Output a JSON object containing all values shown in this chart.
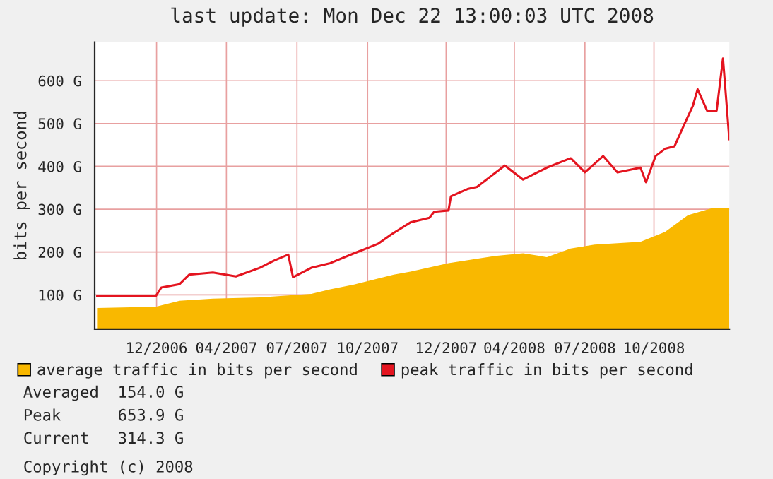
{
  "chart_data": {
    "type": "line",
    "title": "last update: Mon Dec 22 13:00:03 UTC 2008",
    "ylabel": "bits per second",
    "xlim": [
      "2006-10-14",
      "2008-12-22"
    ],
    "ylim": [
      20,
      690
    ],
    "xticks": [
      {
        "value": "2006-12-31",
        "label": "12/2006"
      },
      {
        "value": "2007-03-29",
        "label": "04/2007"
      },
      {
        "value": "2007-06-26",
        "label": "07/2007"
      },
      {
        "value": "2007-09-23",
        "label": "10/2007"
      },
      {
        "value": "2007-12-31",
        "label": "12/2007"
      },
      {
        "value": "2008-03-26",
        "label": "04/2008"
      },
      {
        "value": "2008-06-23",
        "label": "07/2008"
      },
      {
        "value": "2008-09-18",
        "label": "10/2008"
      }
    ],
    "yticks": [
      {
        "value": 100,
        "label": "100 G"
      },
      {
        "value": 200,
        "label": "200 G"
      },
      {
        "value": 300,
        "label": "300 G"
      },
      {
        "value": 400,
        "label": "400 G"
      },
      {
        "value": 500,
        "label": "500 G"
      },
      {
        "value": 600,
        "label": "600 G"
      }
    ],
    "grid": true,
    "legend": "bottom",
    "series": [
      {
        "name": "average traffic in bits per second",
        "type": "area",
        "color": "#f9b800",
        "x": [
          "2006-10-17",
          "2006-12-30",
          "2007-01-29",
          "2007-03-12",
          "2007-05-10",
          "2007-07-14",
          "2007-08-07",
          "2007-09-06",
          "2007-10-26",
          "2007-11-16",
          "2008-01-03",
          "2008-03-02",
          "2008-04-06",
          "2008-05-06",
          "2008-06-05",
          "2008-07-05",
          "2008-09-01",
          "2008-10-02",
          "2008-10-31",
          "2008-11-30",
          "2008-12-22"
        ],
        "values": [
          69,
          72,
          86,
          91,
          94,
          102,
          113,
          124,
          147,
          154,
          174,
          191,
          197,
          188,
          208,
          217,
          224,
          247,
          286,
          302,
          302
        ]
      },
      {
        "name": "peak traffic in bits per second",
        "color": "#e4141f",
        "x": [
          "2006-10-17",
          "2006-12-30",
          "2007-01-06",
          "2007-01-29",
          "2007-02-10",
          "2007-03-12",
          "2007-04-10",
          "2007-05-10",
          "2007-05-28",
          "2007-06-15",
          "2007-06-21",
          "2007-07-14",
          "2007-08-07",
          "2007-09-06",
          "2007-10-06",
          "2007-10-23",
          "2007-11-16",
          "2007-12-10",
          "2007-12-16",
          "2008-01-03",
          "2008-01-06",
          "2008-01-27",
          "2008-02-08",
          "2008-03-14",
          "2008-04-06",
          "2008-05-06",
          "2008-06-05",
          "2008-06-23",
          "2008-07-16",
          "2008-08-03",
          "2008-09-01",
          "2008-09-08",
          "2008-09-20",
          "2008-10-02",
          "2008-10-14",
          "2008-10-26",
          "2008-11-06",
          "2008-11-12",
          "2008-11-24",
          "2008-12-06",
          "2008-12-14",
          "2008-12-18",
          "2008-12-22"
        ],
        "values": [
          97,
          97,
          117,
          125,
          147,
          152,
          143,
          163,
          180,
          194,
          141,
          163,
          174,
          197,
          219,
          241,
          269,
          280,
          294,
          297,
          330,
          347,
          352,
          402,
          369,
          397,
          419,
          386,
          424,
          386,
          397,
          363,
          424,
          441,
          447,
          497,
          541,
          580,
          530,
          530,
          652,
          558,
          463
        ]
      }
    ],
    "annotations": [
      "Averaged  154.0 G",
      "Peak      653.9 G",
      "Current   314.3 G",
      "Copyright (c) 2008"
    ]
  }
}
